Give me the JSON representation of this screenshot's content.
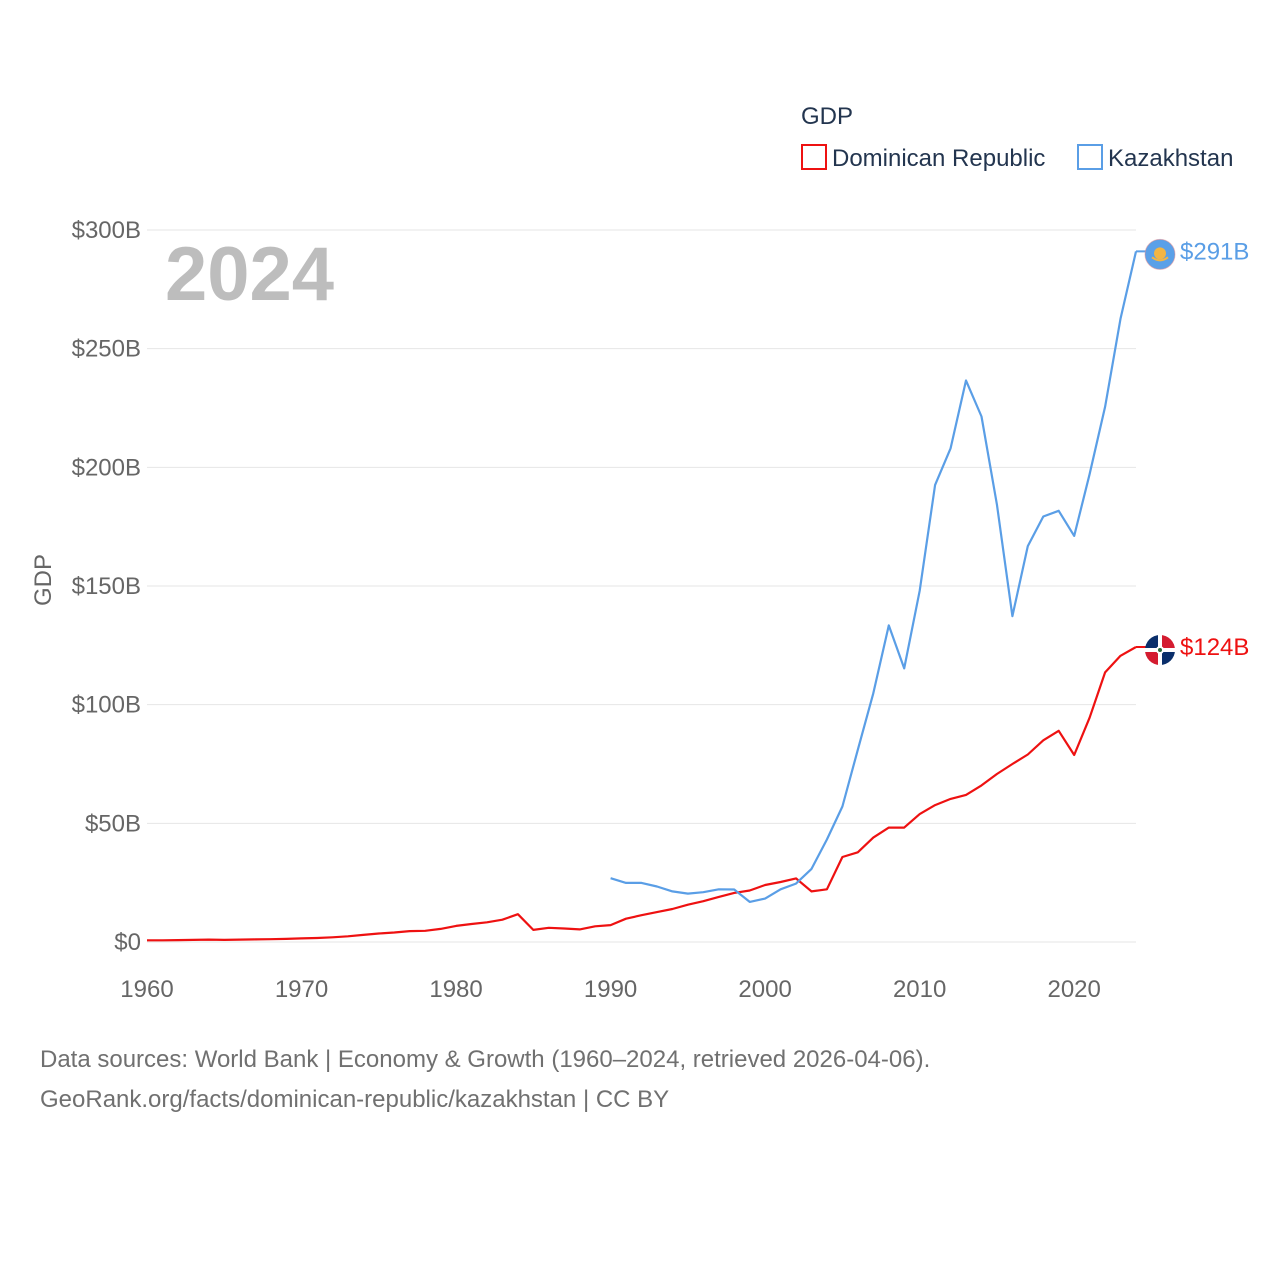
{
  "colors": {
    "dominican": "#ee1111",
    "kazakhstan": "#5a9ee6",
    "grid": "#e6e6e6",
    "axis_text": "#666666",
    "legend_text": "#23354f",
    "watermark": "#bdbdbd"
  },
  "chart_data": {
    "type": "line",
    "title": "",
    "legend_title": "GDP",
    "legend_position": "top-right",
    "ylabel": "GDP",
    "xlabel": "",
    "year_watermark": "2024",
    "xlim": [
      1960,
      2024
    ],
    "ylim": [
      0,
      300
    ],
    "y_unit": "billions USD",
    "x_ticks": [
      1960,
      1970,
      1980,
      1990,
      2000,
      2010,
      2020
    ],
    "y_ticks": [
      {
        "value": 0,
        "label": "$0"
      },
      {
        "value": 50,
        "label": "$50B"
      },
      {
        "value": 100,
        "label": "$100B"
      },
      {
        "value": 150,
        "label": "$150B"
      },
      {
        "value": 200,
        "label": "$200B"
      },
      {
        "value": 250,
        "label": "$250B"
      },
      {
        "value": 300,
        "label": "$300B"
      }
    ],
    "grid": true,
    "series": [
      {
        "name": "Dominican Republic",
        "key": "dominican",
        "end_label": "$124B",
        "icon": "dominican-republic-flag-icon",
        "points": [
          [
            1960,
            0.7
          ],
          [
            1961,
            0.7
          ],
          [
            1962,
            0.8
          ],
          [
            1963,
            0.9
          ],
          [
            1964,
            1.0
          ],
          [
            1965,
            0.9
          ],
          [
            1966,
            1.0
          ],
          [
            1967,
            1.1
          ],
          [
            1968,
            1.2
          ],
          [
            1969,
            1.3
          ],
          [
            1970,
            1.5
          ],
          [
            1971,
            1.7
          ],
          [
            1972,
            2.0
          ],
          [
            1973,
            2.4
          ],
          [
            1974,
            3.0
          ],
          [
            1975,
            3.6
          ],
          [
            1976,
            4.0
          ],
          [
            1977,
            4.6
          ],
          [
            1978,
            4.7
          ],
          [
            1979,
            5.5
          ],
          [
            1980,
            6.8
          ],
          [
            1981,
            7.6
          ],
          [
            1982,
            8.3
          ],
          [
            1983,
            9.4
          ],
          [
            1984,
            11.7
          ],
          [
            1985,
            5.1
          ],
          [
            1986,
            6.0
          ],
          [
            1987,
            5.7
          ],
          [
            1988,
            5.3
          ],
          [
            1989,
            6.6
          ],
          [
            1990,
            7.1
          ],
          [
            1991,
            9.8
          ],
          [
            1992,
            11.3
          ],
          [
            1993,
            12.6
          ],
          [
            1994,
            13.9
          ],
          [
            1995,
            15.7
          ],
          [
            1996,
            17.2
          ],
          [
            1997,
            19.0
          ],
          [
            1998,
            20.7
          ],
          [
            1999,
            21.7
          ],
          [
            2000,
            24.0
          ],
          [
            2001,
            25.3
          ],
          [
            2002,
            26.8
          ],
          [
            2003,
            21.3
          ],
          [
            2004,
            22.2
          ],
          [
            2005,
            35.8
          ],
          [
            2006,
            37.8
          ],
          [
            2007,
            44.0
          ],
          [
            2008,
            48.2
          ],
          [
            2009,
            48.2
          ],
          [
            2010,
            53.9
          ],
          [
            2011,
            57.7
          ],
          [
            2012,
            60.3
          ],
          [
            2013,
            62.0
          ],
          [
            2014,
            66.0
          ],
          [
            2015,
            70.8
          ],
          [
            2016,
            75.0
          ],
          [
            2017,
            79.0
          ],
          [
            2018,
            85.0
          ],
          [
            2019,
            89.0
          ],
          [
            2020,
            78.8
          ],
          [
            2021,
            94.5
          ],
          [
            2022,
            113.6
          ],
          [
            2023,
            120.6
          ],
          [
            2024,
            124.3
          ]
        ]
      },
      {
        "name": "Kazakhstan",
        "key": "kazakhstan",
        "end_label": "$291B",
        "icon": "kazakhstan-flag-icon",
        "points": [
          [
            1990,
            26.9
          ],
          [
            1991,
            24.9
          ],
          [
            1992,
            24.9
          ],
          [
            1993,
            23.4
          ],
          [
            1994,
            21.3
          ],
          [
            1995,
            20.4
          ],
          [
            1996,
            21.0
          ],
          [
            1997,
            22.2
          ],
          [
            1998,
            22.1
          ],
          [
            1999,
            16.9
          ],
          [
            2000,
            18.3
          ],
          [
            2001,
            22.2
          ],
          [
            2002,
            24.6
          ],
          [
            2003,
            30.8
          ],
          [
            2004,
            43.2
          ],
          [
            2005,
            57.1
          ],
          [
            2006,
            81.0
          ],
          [
            2007,
            104.8
          ],
          [
            2008,
            133.4
          ],
          [
            2009,
            115.3
          ],
          [
            2010,
            148.0
          ],
          [
            2011,
            192.6
          ],
          [
            2012,
            208.0
          ],
          [
            2013,
            236.6
          ],
          [
            2014,
            221.4
          ],
          [
            2015,
            184.4
          ],
          [
            2016,
            137.3
          ],
          [
            2017,
            166.8
          ],
          [
            2018,
            179.3
          ],
          [
            2019,
            181.7
          ],
          [
            2020,
            171.1
          ],
          [
            2021,
            197.1
          ],
          [
            2022,
            225.5
          ],
          [
            2023,
            262.6
          ],
          [
            2024,
            291.0
          ]
        ]
      }
    ]
  },
  "footer": {
    "line1": "Data sources: World Bank | Economy & Growth (1960–2024, retrieved 2026-04-06).",
    "line2": "GeoRank.org/facts/dominican-republic/kazakhstan | CC BY"
  }
}
